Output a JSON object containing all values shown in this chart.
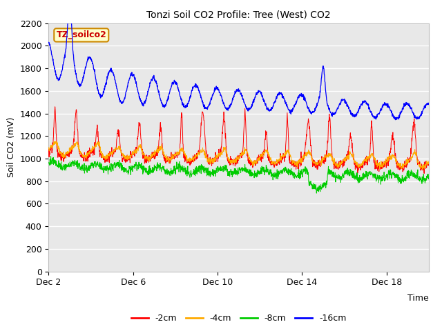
{
  "title": "Tonzi Soil CO2 Profile: Tree (West) CO2",
  "ylabel": "Soil CO2 (mV)",
  "xlabel": "Time",
  "annotation": "TZ_soilco2",
  "ylim": [
    0,
    2200
  ],
  "yticks": [
    0,
    200,
    400,
    600,
    800,
    1000,
    1200,
    1400,
    1600,
    1800,
    2000,
    2200
  ],
  "plot_bg_color": "#e8e8e8",
  "grid_color": "#ffffff",
  "series_colors": {
    "-2cm": "#ff0000",
    "-4cm": "#ffaa00",
    "-8cm": "#00cc00",
    "-16cm": "#0000ff"
  },
  "x_tick_labels": [
    "Dec 2",
    "Dec 6",
    "Dec 10",
    "Dec 14",
    "Dec 18"
  ],
  "x_tick_positions": [
    2,
    6,
    10,
    14,
    18
  ],
  "annotation_box_color": "#ffffcc",
  "annotation_border_color": "#cc8800",
  "annotation_text_color": "#cc0000",
  "seed": 42
}
